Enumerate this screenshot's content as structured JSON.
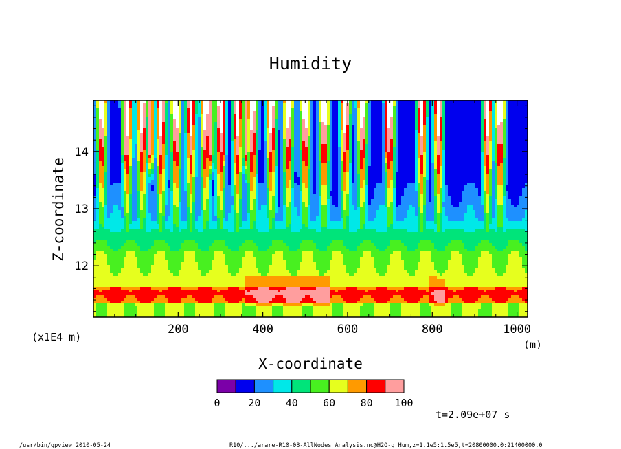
{
  "chart_data": {
    "type": "heatmap",
    "title": "Humidity",
    "xlabel": "X-coordinate",
    "ylabel": "Z-coordinate",
    "x_unit": "(m)",
    "y_scale_note": "(x1E4 m)",
    "xlim": [
      0,
      1025
    ],
    "ylim": [
      11.1,
      14.9
    ],
    "x_ticks": [
      200,
      400,
      600,
      800,
      1000
    ],
    "x_tick_labels": [
      "200",
      "400",
      "600",
      "800",
      "1000"
    ],
    "y_ticks": [
      12,
      13,
      14
    ],
    "y_tick_labels": [
      "12",
      "13",
      "14"
    ],
    "colorbar": {
      "levels": [
        0,
        10,
        20,
        30,
        40,
        50,
        60,
        70,
        80,
        90,
        100
      ],
      "labels": [
        "0",
        "20",
        "40",
        "60",
        "80",
        "100"
      ],
      "label_values": [
        0,
        20,
        40,
        60,
        80,
        100
      ],
      "colors": [
        "#7b00a8",
        "#0000ee",
        "#1e90ff",
        "#00e8e8",
        "#00e47a",
        "#48f020",
        "#e6ff1e",
        "#ff9a00",
        "#ff0000",
        "#ff9e9e"
      ]
    },
    "features": {
      "surface_band_z": 11.5,
      "moist_layer_top_z": 12.8,
      "humid_plumes_x": [
        20,
        80,
        115,
        160,
        195,
        230,
        265,
        300,
        340,
        375,
        420,
        460,
        500,
        545,
        595,
        635,
        700,
        775,
        815,
        930,
        960
      ],
      "very_humid_plumes_x": [
        75,
        135,
        195,
        275,
        305,
        360,
        695,
        775,
        930
      ]
    },
    "time_label": "t=2.09e+07 s"
  },
  "footer": {
    "left": "/usr/bin/gpview  2010-05-24",
    "right": "R10/.../arare-R10-08-AllNodes_Analysis.nc@H2O-g_Hum,z=1.1e5:1.5e5,t=20800000.0:21400000.0"
  }
}
